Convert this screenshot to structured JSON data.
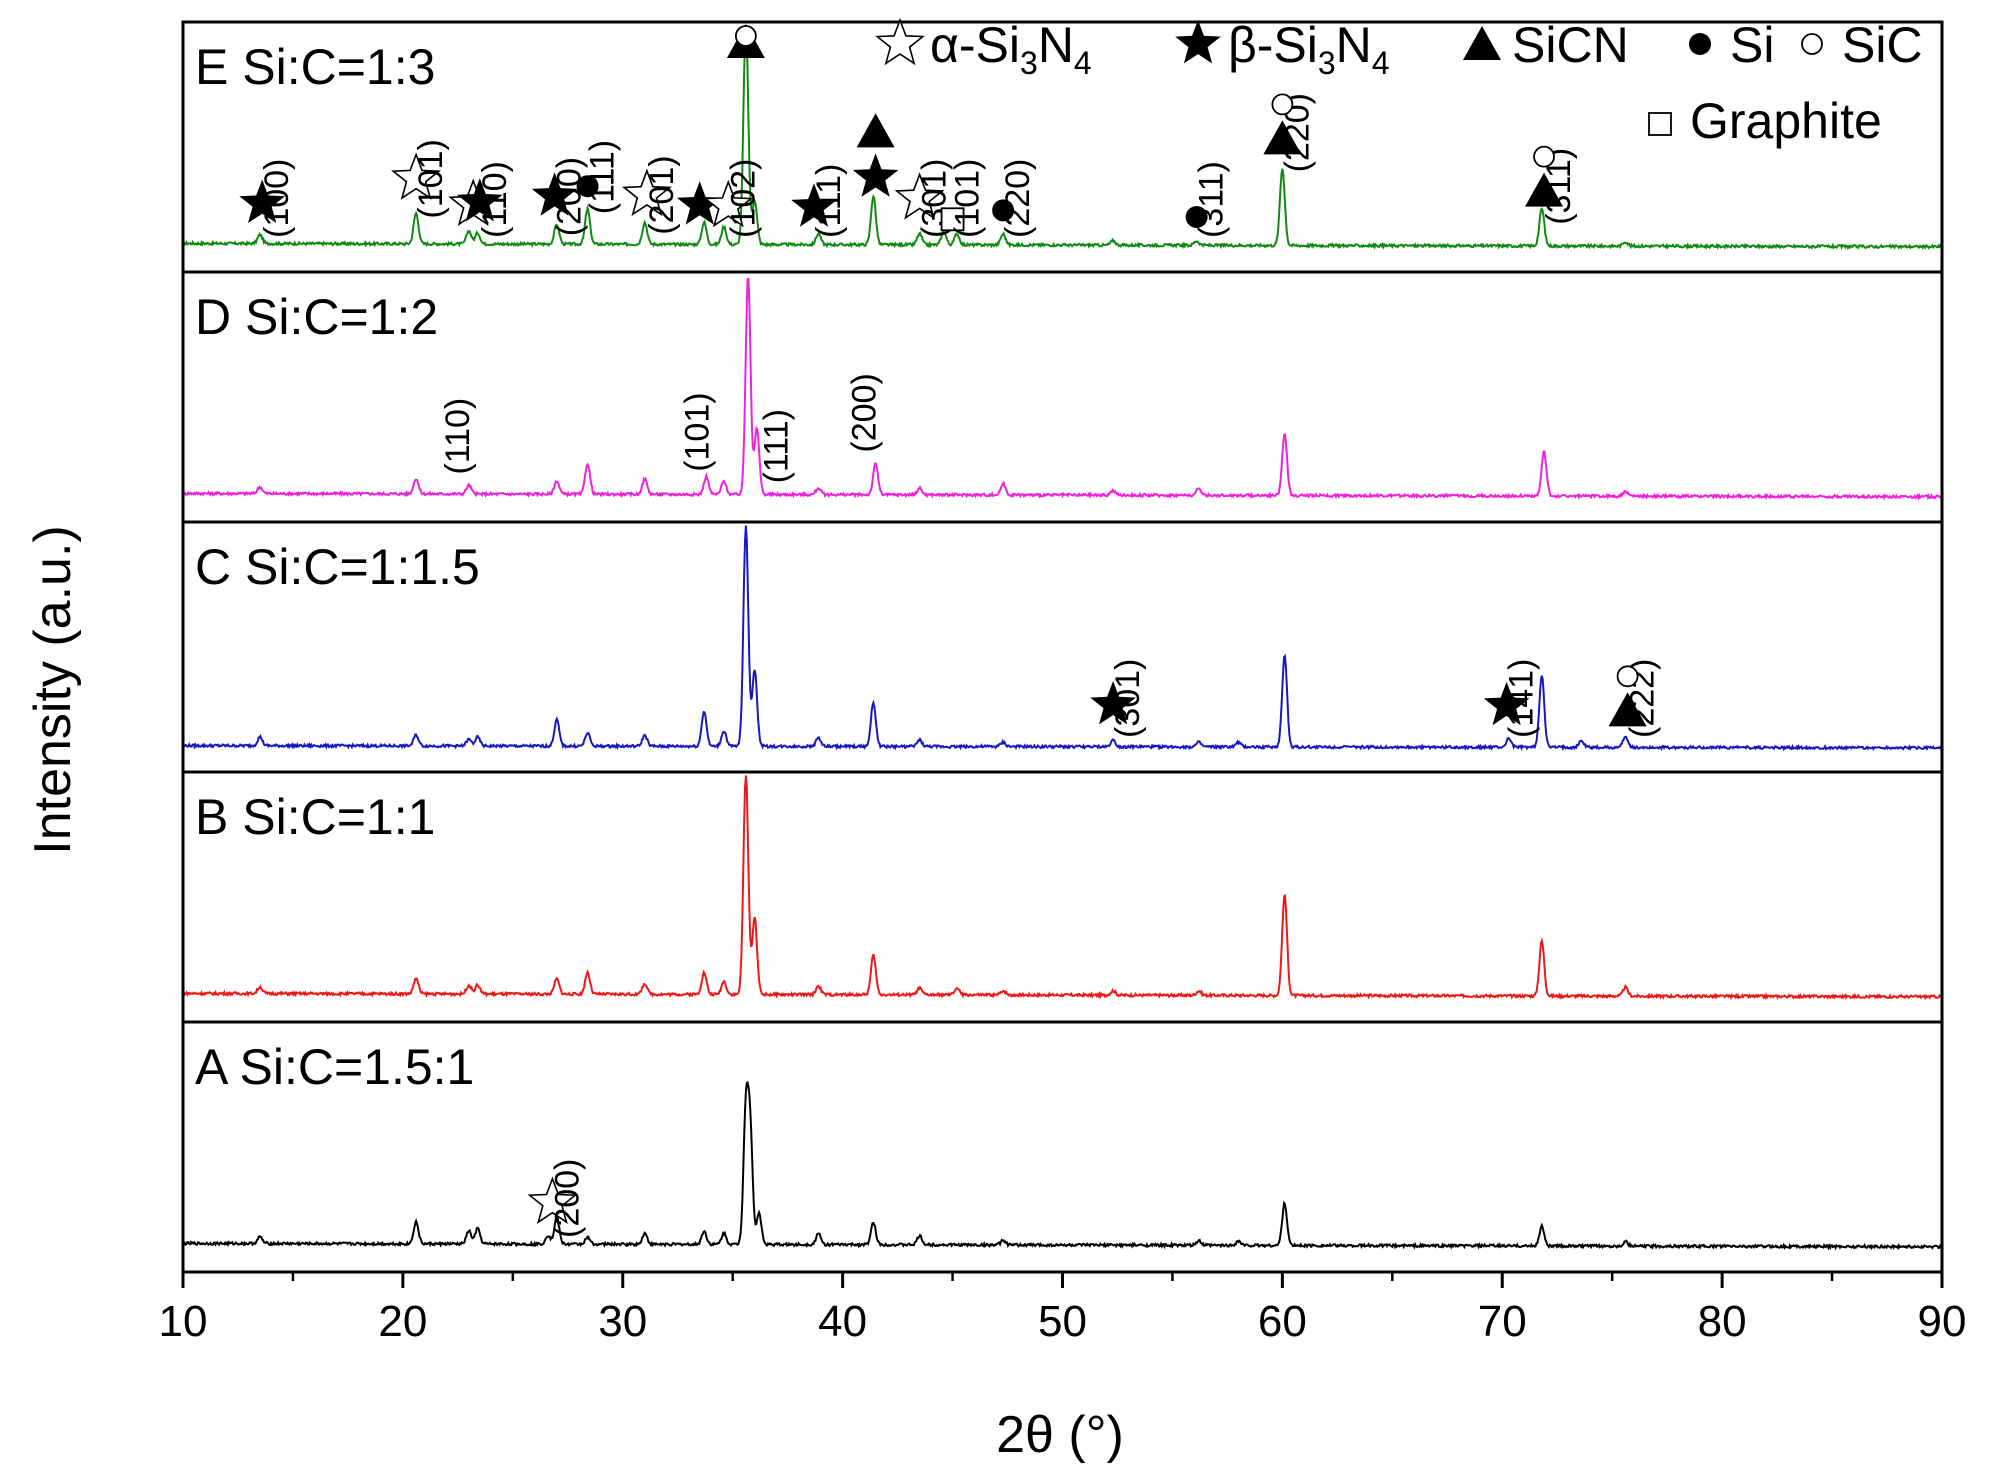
{
  "chart_data": {
    "type": "line",
    "xlabel": "2θ (°)",
    "ylabel": "Intensity (a.u.)",
    "xlim": [
      10,
      90
    ],
    "xticks": [
      10,
      20,
      30,
      40,
      50,
      60,
      70,
      80,
      90
    ],
    "grid": false,
    "legend": {
      "placement": "top-right",
      "entries": [
        {
          "symbol": "star-open",
          "label": "α-Si3N4"
        },
        {
          "symbol": "star-filled",
          "label": "β-Si3N4"
        },
        {
          "symbol": "triangle-filled",
          "label": "SiCN"
        },
        {
          "symbol": "circle-filled",
          "label": "Si"
        },
        {
          "symbol": "circle-open",
          "label": "SiC"
        },
        {
          "symbol": "square-open",
          "label": "Graphite"
        }
      ]
    },
    "panels": [
      {
        "name": "E Si:C=1:3",
        "color": "#108a10",
        "baseline": 0.03,
        "peaks": [
          [
            13.5,
            0.04
          ],
          [
            20.6,
            0.14
          ],
          [
            23.0,
            0.06
          ],
          [
            23.4,
            0.05
          ],
          [
            27.0,
            0.09
          ],
          [
            28.4,
            0.16
          ],
          [
            31.0,
            0.1
          ],
          [
            33.7,
            0.1
          ],
          [
            34.6,
            0.08
          ],
          [
            35.6,
            1.0
          ],
          [
            36.0,
            0.2
          ],
          [
            38.9,
            0.05
          ],
          [
            41.4,
            0.22
          ],
          [
            43.5,
            0.05
          ],
          [
            44.6,
            0.06
          ],
          [
            45.2,
            0.05
          ],
          [
            47.3,
            0.05
          ],
          [
            52.3,
            0.02
          ],
          [
            56.1,
            0.02
          ],
          [
            60.0,
            0.35
          ],
          [
            71.8,
            0.17
          ],
          [
            75.6,
            0.02
          ]
        ],
        "annotations": [
          {
            "x": 13.6,
            "sym": "star-filled",
            "hkl": "(100)"
          },
          {
            "x": 20.6,
            "sym": "star-open",
            "hkl": "(101)"
          },
          {
            "x": 23.2,
            "sym": "star-open",
            "hkl": ""
          },
          {
            "x": 23.5,
            "sym": "star-filled",
            "hkl": "(110)"
          },
          {
            "x": 26.9,
            "sym": "star-filled",
            "hkl": "(200)"
          },
          {
            "x": 28.4,
            "sym": "circle-filled",
            "hkl": "(111)"
          },
          {
            "x": 31.1,
            "sym": "star-open",
            "hkl": "(201)"
          },
          {
            "x": 33.5,
            "sym": "star-filled",
            "hkl": ""
          },
          {
            "x": 34.8,
            "sym": "star-open",
            "hkl": "(102)"
          },
          {
            "x": 35.6,
            "sym": "triangle-filled",
            "hkl": ""
          },
          {
            "x": 35.6,
            "sym": "circle-open",
            "hkl": ""
          },
          {
            "x": 38.7,
            "sym": "star-filled",
            "hkl": "(111)"
          },
          {
            "x": 41.5,
            "sym": "star-filled",
            "hkl": ""
          },
          {
            "x": 41.5,
            "sym": "triangle-filled",
            "hkl": ""
          },
          {
            "x": 43.5,
            "sym": "star-open",
            "hkl": "(301)"
          },
          {
            "x": 45.0,
            "sym": "square-open",
            "hkl": "(101)"
          },
          {
            "x": 47.3,
            "sym": "circle-filled",
            "hkl": "(220)"
          },
          {
            "x": 56.1,
            "sym": "circle-filled",
            "hkl": "(311)"
          },
          {
            "x": 60.0,
            "sym": "triangle-filled",
            "hkl": "(220)"
          },
          {
            "x": 60.0,
            "sym": "circle-open",
            "hkl": ""
          },
          {
            "x": 71.9,
            "sym": "triangle-filled",
            "hkl": "(311)"
          },
          {
            "x": 71.9,
            "sym": "circle-open",
            "hkl": ""
          }
        ]
      },
      {
        "name": "D Si:C=1:2",
        "color": "#ee22dd",
        "baseline": 0.03,
        "peaks": [
          [
            13.5,
            0.03
          ],
          [
            20.6,
            0.07
          ],
          [
            23.0,
            0.04
          ],
          [
            27.0,
            0.06
          ],
          [
            28.4,
            0.14
          ],
          [
            31.0,
            0.07
          ],
          [
            33.8,
            0.08
          ],
          [
            34.6,
            0.06
          ],
          [
            35.7,
            1.0
          ],
          [
            36.1,
            0.3
          ],
          [
            38.9,
            0.03
          ],
          [
            41.5,
            0.14
          ],
          [
            43.5,
            0.03
          ],
          [
            47.3,
            0.05
          ],
          [
            52.3,
            0.02
          ],
          [
            56.2,
            0.03
          ],
          [
            60.1,
            0.28
          ],
          [
            71.9,
            0.2
          ],
          [
            75.6,
            0.02
          ]
        ],
        "annotations": [
          {
            "x": 23.0,
            "sym": "",
            "hkl": "(110)"
          },
          {
            "x": 33.9,
            "sym": "",
            "hkl": "(101)"
          },
          {
            "x": 37.5,
            "sym": "",
            "hkl": "(111)"
          },
          {
            "x": 41.5,
            "sym": "",
            "hkl": "(200)"
          }
        ]
      },
      {
        "name": "C Si:C=1:1.5",
        "color": "#1818c0",
        "baseline": 0.02,
        "peaks": [
          [
            13.5,
            0.04
          ],
          [
            20.6,
            0.05
          ],
          [
            23.0,
            0.03
          ],
          [
            23.4,
            0.04
          ],
          [
            27.0,
            0.12
          ],
          [
            28.4,
            0.06
          ],
          [
            31.0,
            0.05
          ],
          [
            33.7,
            0.16
          ],
          [
            34.6,
            0.07
          ],
          [
            35.6,
            1.0
          ],
          [
            36.0,
            0.35
          ],
          [
            38.9,
            0.04
          ],
          [
            41.4,
            0.2
          ],
          [
            43.5,
            0.03
          ],
          [
            47.3,
            0.02
          ],
          [
            52.3,
            0.03
          ],
          [
            56.2,
            0.02
          ],
          [
            58.0,
            0.02
          ],
          [
            60.1,
            0.42
          ],
          [
            70.3,
            0.04
          ],
          [
            71.8,
            0.33
          ],
          [
            73.6,
            0.03
          ],
          [
            75.6,
            0.05
          ]
        ],
        "annotations": [
          {
            "x": 52.3,
            "sym": "star-filled",
            "hkl": "(301)"
          },
          {
            "x": 70.2,
            "sym": "star-filled",
            "hkl": "(141)"
          },
          {
            "x": 75.7,
            "sym": "triangle-filled",
            "hkl": "(222)"
          },
          {
            "x": 75.7,
            "sym": "circle-open",
            "hkl": ""
          }
        ]
      },
      {
        "name": "B Si:C=1:1",
        "color": "#ee1818",
        "baseline": 0.03,
        "peaks": [
          [
            13.5,
            0.03
          ],
          [
            20.6,
            0.07
          ],
          [
            23.0,
            0.04
          ],
          [
            23.4,
            0.04
          ],
          [
            27.0,
            0.07
          ],
          [
            28.4,
            0.1
          ],
          [
            31.0,
            0.05
          ],
          [
            33.7,
            0.1
          ],
          [
            34.6,
            0.06
          ],
          [
            35.6,
            1.0
          ],
          [
            36.0,
            0.35
          ],
          [
            38.9,
            0.04
          ],
          [
            41.4,
            0.18
          ],
          [
            43.5,
            0.03
          ],
          [
            45.2,
            0.03
          ],
          [
            47.3,
            0.02
          ],
          [
            52.3,
            0.02
          ],
          [
            56.2,
            0.02
          ],
          [
            60.1,
            0.46
          ],
          [
            71.8,
            0.25
          ],
          [
            75.6,
            0.04
          ]
        ],
        "annotations": []
      },
      {
        "name": "A Si:C=1.5:1",
        "color": "#000000",
        "baseline": 0.03,
        "peaks": [
          [
            13.5,
            0.03
          ],
          [
            20.6,
            0.1
          ],
          [
            23.0,
            0.06
          ],
          [
            23.4,
            0.07
          ],
          [
            26.6,
            0.04
          ],
          [
            27.0,
            0.12
          ],
          [
            28.4,
            0.03
          ],
          [
            31.0,
            0.05
          ],
          [
            33.7,
            0.06
          ],
          [
            34.6,
            0.05
          ],
          [
            35.6,
            0.6
          ],
          [
            35.8,
            0.5
          ],
          [
            36.2,
            0.14
          ],
          [
            38.9,
            0.05
          ],
          [
            41.4,
            0.1
          ],
          [
            43.5,
            0.04
          ],
          [
            47.3,
            0.02
          ],
          [
            56.2,
            0.02
          ],
          [
            58.0,
            0.02
          ],
          [
            60.1,
            0.19
          ],
          [
            71.8,
            0.09
          ],
          [
            75.6,
            0.02
          ]
        ],
        "annotations": [
          {
            "x": 26.8,
            "sym": "star-open",
            "hkl": "(200)"
          }
        ]
      }
    ]
  }
}
